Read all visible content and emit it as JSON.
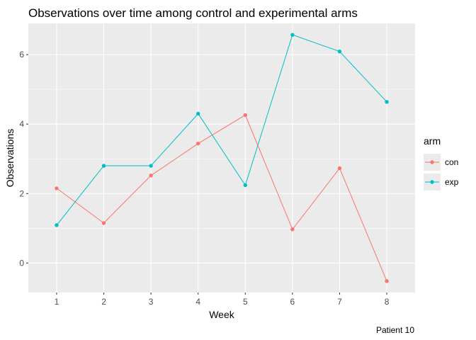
{
  "chart_data": {
    "type": "line",
    "title": "Observations over time among control and experimental arms",
    "xlabel": "Week",
    "ylabel": "Observations",
    "caption": "Patient 10",
    "x": [
      1,
      2,
      3,
      4,
      5,
      6,
      7,
      8
    ],
    "xticks": [
      "1",
      "2",
      "3",
      "4",
      "5",
      "6",
      "7",
      "8"
    ],
    "xlim": [
      0.4,
      8.6
    ],
    "yticks": [
      0,
      2,
      4,
      6
    ],
    "ylim": [
      -0.85,
      6.9
    ],
    "grid": true,
    "legend_title": "arm",
    "legend_position": "right",
    "series": [
      {
        "name": "con",
        "color": "#F8766D",
        "values": [
          2.15,
          1.15,
          2.52,
          3.44,
          4.26,
          0.97,
          2.73,
          -0.52
        ]
      },
      {
        "name": "exp",
        "color": "#00BFC4",
        "values": [
          1.09,
          2.8,
          2.8,
          4.3,
          2.24,
          6.57,
          6.09,
          4.64
        ]
      }
    ]
  }
}
